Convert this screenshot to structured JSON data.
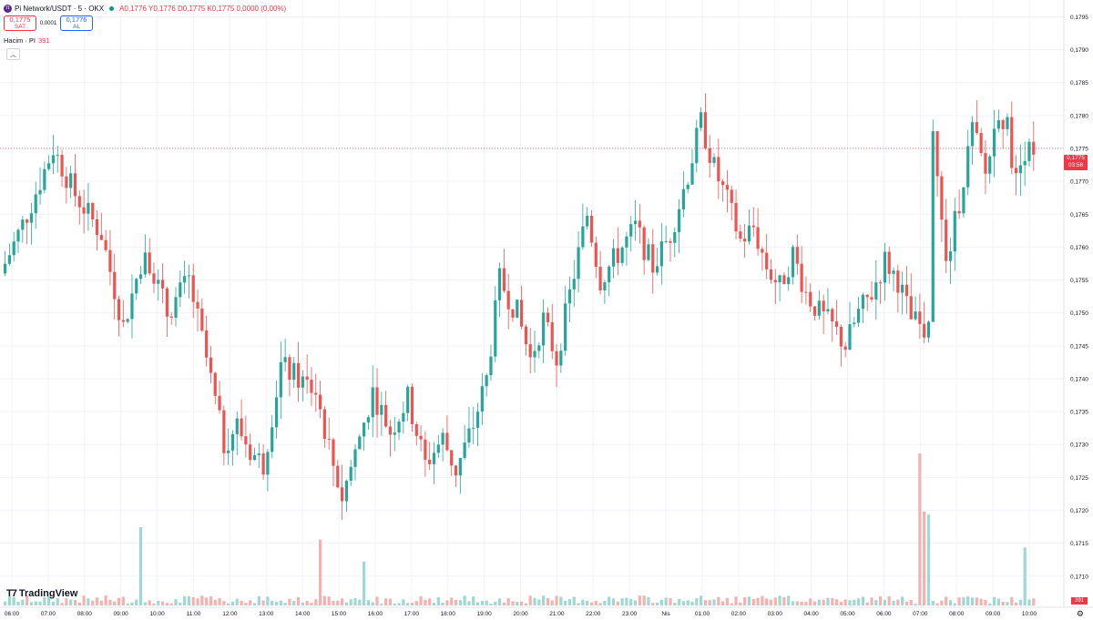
{
  "header": {
    "symbol": "Pi Network/USDT · 5 · OKX",
    "icon": "pi-logo-icon",
    "ohlc": "A0,1776 Y0,1776 D0,1775 K0,1775 0,0000 (0,00%)"
  },
  "trade": {
    "sell_price": "0,1775",
    "sell_label": "SAT",
    "spread": "0,0001",
    "buy_price": "0,1776",
    "buy_label": "AL"
  },
  "volume_legend": {
    "label": "Hacim · PI",
    "value": "391"
  },
  "last_price": {
    "price": "0,1775",
    "countdown": "03:58"
  },
  "volume_tag": "391",
  "logo_text": "TradingView",
  "colors": {
    "up": "#26a69a",
    "down": "#ef5350",
    "up_vol": "#9fd8d2",
    "down_vol": "#f4b1b0"
  },
  "chart_data": {
    "type": "candlestick",
    "y_axis_labels": [
      "0,1795",
      "0,1790",
      "0,1785",
      "0,1780",
      "0,1775",
      "0,1770",
      "0,1765",
      "0,1760",
      "0,1755",
      "0,1750",
      "0,1745",
      "0,1740",
      "0,1735",
      "0,1730",
      "0,1725",
      "0,1720",
      "0,1715",
      "0,1710"
    ],
    "ylim": [
      0.1709,
      0.1797
    ],
    "x_axis_labels": [
      "06:00",
      "07:00",
      "08:00",
      "09:00",
      "10:00",
      "11:00",
      "12:00",
      "13:00",
      "14:00",
      "15:00",
      "16:00",
      "17:00",
      "18:00",
      "19:00",
      "20:00",
      "21:00",
      "22:00",
      "23:00",
      "Nis",
      "01:00",
      "02:00",
      "03:00",
      "04:00",
      "05:00",
      "06:00",
      "07:00",
      "08:00",
      "09:00",
      "10:00"
    ],
    "current_price": 0.1775,
    "path": [
      [
        0,
        0.1756
      ],
      [
        6,
        0.1765
      ],
      [
        12,
        0.1775
      ],
      [
        17,
        0.1768
      ],
      [
        23,
        0.1762
      ],
      [
        28,
        0.1748
      ],
      [
        33,
        0.176
      ],
      [
        38,
        0.175
      ],
      [
        43,
        0.1755
      ],
      [
        47,
        0.1743
      ],
      [
        51,
        0.173
      ],
      [
        54,
        0.1733
      ],
      [
        57,
        0.1729
      ],
      [
        60,
        0.1727
      ],
      [
        64,
        0.1742
      ],
      [
        68,
        0.174
      ],
      [
        72,
        0.1738
      ],
      [
        76,
        0.1727
      ],
      [
        78,
        0.1722
      ],
      [
        81,
        0.1729
      ],
      [
        85,
        0.1738
      ],
      [
        89,
        0.1732
      ],
      [
        93,
        0.1737
      ],
      [
        97,
        0.1727
      ],
      [
        101,
        0.1731
      ],
      [
        104,
        0.1726
      ],
      [
        108,
        0.1733
      ],
      [
        111,
        0.174
      ],
      [
        114,
        0.1755
      ],
      [
        118,
        0.175
      ],
      [
        121,
        0.1743
      ],
      [
        124,
        0.1749
      ],
      [
        127,
        0.1743
      ],
      [
        131,
        0.1756
      ],
      [
        134,
        0.1765
      ],
      [
        137,
        0.1755
      ],
      [
        141,
        0.1759
      ],
      [
        145,
        0.1763
      ],
      [
        149,
        0.1757
      ],
      [
        153,
        0.1762
      ],
      [
        157,
        0.1771
      ],
      [
        160,
        0.1779
      ],
      [
        163,
        0.1772
      ],
      [
        166,
        0.1767
      ],
      [
        169,
        0.1761
      ],
      [
        172,
        0.1763
      ],
      [
        175,
        0.1757
      ],
      [
        178,
        0.1754
      ],
      [
        181,
        0.1759
      ],
      [
        184,
        0.1753
      ],
      [
        187,
        0.175
      ],
      [
        190,
        0.1748
      ],
      [
        193,
        0.1745
      ],
      [
        196,
        0.175
      ],
      [
        199,
        0.1753
      ],
      [
        202,
        0.1758
      ],
      [
        205,
        0.1755
      ],
      [
        208,
        0.1749
      ],
      [
        212,
        0.1747
      ],
      [
        213,
        0.1779
      ],
      [
        214,
        0.177
      ],
      [
        216,
        0.1757
      ],
      [
        219,
        0.1767
      ],
      [
        222,
        0.1778
      ],
      [
        225,
        0.1771
      ],
      [
        228,
        0.1781
      ],
      [
        230,
        0.1778
      ],
      [
        232,
        0.177
      ],
      [
        234,
        0.1775
      ]
    ],
    "volume_spikes": [
      [
        31,
        0.5
      ],
      [
        72,
        0.42
      ],
      [
        82,
        0.28
      ],
      [
        209,
        0.97
      ],
      [
        210,
        0.6
      ],
      [
        211,
        0.58
      ],
      [
        233,
        0.37
      ]
    ]
  }
}
